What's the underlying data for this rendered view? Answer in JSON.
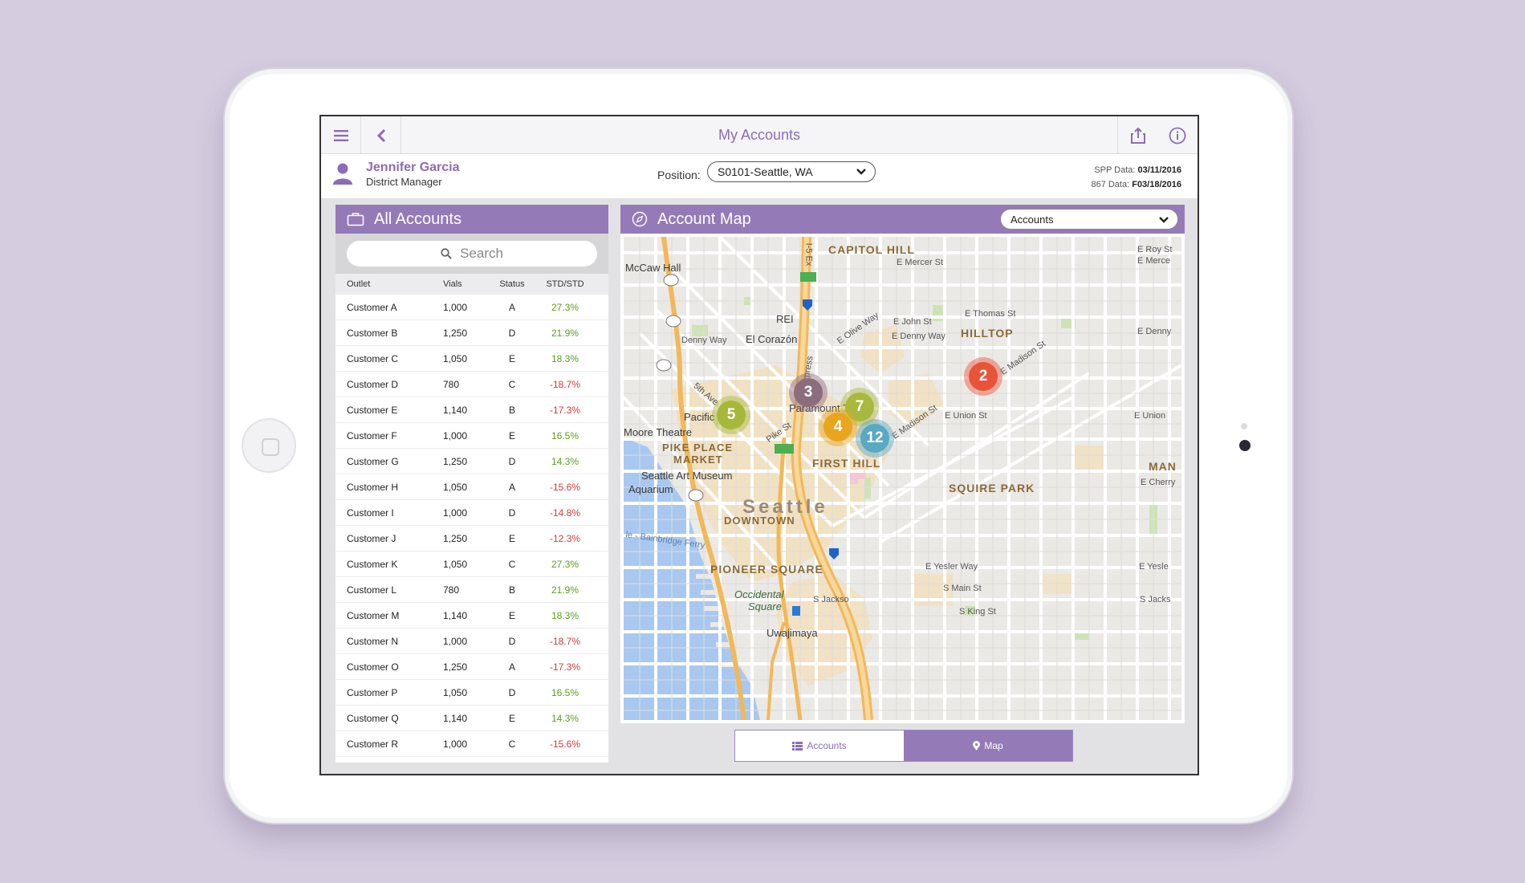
{
  "header": {
    "title": "My Accounts"
  },
  "user": {
    "name": "Jennifer Garcia",
    "role": "District Manager"
  },
  "position": {
    "label": "Position:",
    "value": "S0101-Seattle, WA"
  },
  "data_dates": {
    "spp_label": "SPP Data:",
    "spp_value": "03/11/2016",
    "d867_label": "867 Data:",
    "d867_value": "F03/18/2016"
  },
  "accounts_panel": {
    "title": "All Accounts",
    "search_placeholder": "Search",
    "columns": [
      "Outlet",
      "Vials",
      "Status",
      "STD/STD"
    ],
    "rows": [
      {
        "outlet": "Customer A",
        "vials": "1,000",
        "status": "A",
        "std": "27.3%",
        "trend": "pos"
      },
      {
        "outlet": "Customer B",
        "vials": "1,250",
        "status": "D",
        "std": "21.9%",
        "trend": "pos"
      },
      {
        "outlet": "Customer C",
        "vials": "1,050",
        "status": "E",
        "std": "18.3%",
        "trend": "pos"
      },
      {
        "outlet": "Customer D",
        "vials": "780",
        "status": "C",
        "std": "-18.7%",
        "trend": "neg"
      },
      {
        "outlet": "Customer E",
        "vials": "1,140",
        "status": "B",
        "std": "-17.3%",
        "trend": "neg"
      },
      {
        "outlet": "Customer F",
        "vials": "1,000",
        "status": "E",
        "std": "16.5%",
        "trend": "pos"
      },
      {
        "outlet": "Customer G",
        "vials": "1,250",
        "status": "D",
        "std": "14.3%",
        "trend": "pos"
      },
      {
        "outlet": "Customer H",
        "vials": "1,050",
        "status": "A",
        "std": "-15.6%",
        "trend": "neg"
      },
      {
        "outlet": "Customer I",
        "vials": "1,000",
        "status": "D",
        "std": "-14.8%",
        "trend": "neg"
      },
      {
        "outlet": "Customer J",
        "vials": "1,250",
        "status": "E",
        "std": "-12.3%",
        "trend": "neg"
      },
      {
        "outlet": "Customer K",
        "vials": "1,050",
        "status": "C",
        "std": "27.3%",
        "trend": "pos"
      },
      {
        "outlet": "Customer L",
        "vials": "780",
        "status": "B",
        "std": "21.9%",
        "trend": "pos"
      },
      {
        "outlet": "Customer M",
        "vials": "1,140",
        "status": "E",
        "std": "18.3%",
        "trend": "pos"
      },
      {
        "outlet": "Customer N",
        "vials": "1,000",
        "status": "D",
        "std": "-18.7%",
        "trend": "neg"
      },
      {
        "outlet": "Customer O",
        "vials": "1,250",
        "status": "A",
        "std": "-17.3%",
        "trend": "neg"
      },
      {
        "outlet": "Customer P",
        "vials": "1,050",
        "status": "D",
        "std": "16.5%",
        "trend": "pos"
      },
      {
        "outlet": "Customer Q",
        "vials": "1,140",
        "status": "E",
        "std": "14.3%",
        "trend": "pos"
      },
      {
        "outlet": "Customer R",
        "vials": "1,000",
        "status": "C",
        "std": "-15.6%",
        "trend": "neg"
      }
    ]
  },
  "map_panel": {
    "title": "Account Map",
    "filter_value": "Accounts",
    "clusters": [
      {
        "count": "5",
        "color": "#a5b83a"
      },
      {
        "count": "3",
        "color": "#8c6d7e"
      },
      {
        "count": "7",
        "color": "#a9b83e"
      },
      {
        "count": "4",
        "color": "#e8a51e"
      },
      {
        "count": "12",
        "color": "#59a9c1"
      },
      {
        "count": "2",
        "color": "#e8533a"
      }
    ],
    "labels": {
      "capitol_hill": "CAPITOL HILL",
      "mccaw_hall": "McCaw Hall",
      "rei": "REI",
      "el_corazon": "El Corazón",
      "hilltop": "HILLTOP",
      "pacific_place": "Pacific P",
      "paramount": "Paramount Th",
      "moore": "Moore Theatre",
      "pike_place": "PIKE PLACE",
      "market": "MARKET",
      "first_hill": "FIRST HILL",
      "art_museum": "Seattle Art Museum",
      "aquarium": "Aquarium",
      "seattle": "Seattle",
      "downtown": "DOWNTOWN",
      "squire_park": "SQUIRE PARK",
      "pioneer_square": "PIONEER SQUARE",
      "occidental": "Occidental",
      "square": "Square",
      "uwajimaya": "Uwajimaya",
      "man": "MAN",
      "ferry": "le - Bainbridge Ferry",
      "e_mercer": "E Mercer St",
      "e_thomas": "E Thomas St",
      "e_john": "E John St",
      "e_denny": "E Denny Way",
      "denny": "Denny Way",
      "e_union": "E Union St",
      "e_union2": "E Union",
      "e_madison": "E Madison St",
      "e_madison2": "E Madison St",
      "e_yesler": "E Yesler Way",
      "e_yesler2": "E Yesle",
      "e_cherry": "E Cherry",
      "s_main": "S Main St",
      "s_king": "S King St",
      "s_jackson": "S Jackso",
      "s_jackson2": "S Jacks",
      "e_roy": "E Roy St",
      "e_mercer2": "E Merce",
      "e_denny2": "E Denny",
      "pike_st": "Pike St",
      "e_olive": "E Olive Way",
      "fifth_ave": "5th Ave",
      "i5_exp": "I-5 Express",
      "i5_ex": "I-5 Ex"
    }
  },
  "view_toggle": {
    "accounts": "Accounts",
    "map": "Map"
  },
  "colors": {
    "brand": "#957ab8",
    "accent_text": "#8a6db7",
    "positive": "#5a9e1e",
    "negative": "#d93838"
  },
  "icons": [
    "menu-icon",
    "back-chevron-icon",
    "share-icon",
    "info-icon",
    "user-icon",
    "briefcase-icon",
    "compass-icon",
    "search-icon",
    "list-icon",
    "map-pin-icon"
  ]
}
